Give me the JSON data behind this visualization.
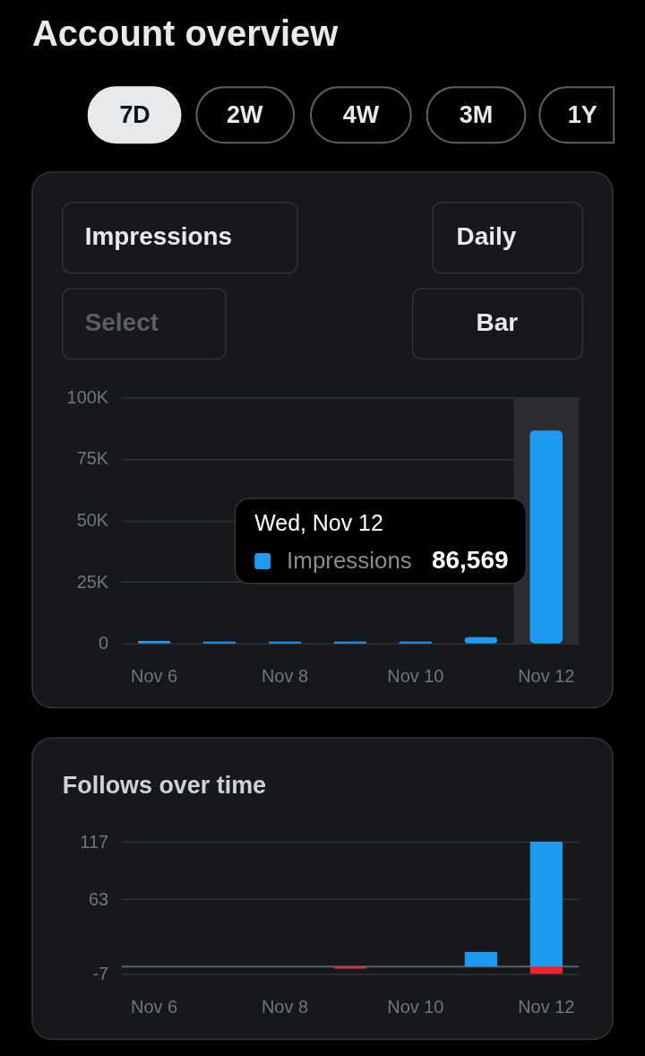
{
  "chart_data": [
    {
      "type": "other",
      "title": "Account overview",
      "annotations": [
        "7D",
        "2W",
        "4W",
        "3M",
        "1Y"
      ]
    },
    {
      "type": "bar",
      "categories": [
        "Nov 6",
        null,
        "Nov 8",
        null,
        "Nov 10",
        null,
        "Nov 12"
      ],
      "series": [
        {
          "name": "Impressions",
          "color": "#1d9bf0",
          "values": [
            1000,
            700,
            700,
            700,
            700,
            2500,
            86569
          ]
        }
      ],
      "ylim": [
        0,
        100000
      ],
      "yticks": [
        0,
        {
          "value": 25000,
          "label": "25K"
        },
        {
          "value": 50000,
          "label": "50K"
        },
        {
          "value": 75000,
          "label": "75K"
        },
        {
          "value": 100000,
          "label": "100K"
        }
      ],
      "grid": "y",
      "legend": "bottom left",
      "bands": [
        {
          "axis": "x",
          "from": "Nov 12",
          "to": "Nov 12",
          "color": "#2b2c31"
        }
      ],
      "annotations": [
        "Daily",
        "Select",
        "Bar",
        "Wed, Nov 12",
        "86,569"
      ]
    },
    {
      "type": "bar",
      "title": "Follows over time",
      "categories": [
        "Nov 6",
        null,
        "Nov 8",
        null,
        "Nov 10",
        null,
        "Nov 12"
      ],
      "stacked": true,
      "series": [
        {
          "color": "#1d9bf0",
          "values": [
            0,
            0,
            0,
            0,
            0,
            14,
            117
          ]
        },
        {
          "color": "#f4212e",
          "values": [
            0,
            0,
            0,
            -2,
            0,
            0,
            -7
          ]
        }
      ],
      "ylim": [
        -7,
        117
      ],
      "yticks": [
        117,
        63,
        -7
      ],
      "grid": "y",
      "ref_lines": [
        {
          "axis": "y",
          "value": 0,
          "color": "#5b5e62"
        }
      ]
    }
  ]
}
